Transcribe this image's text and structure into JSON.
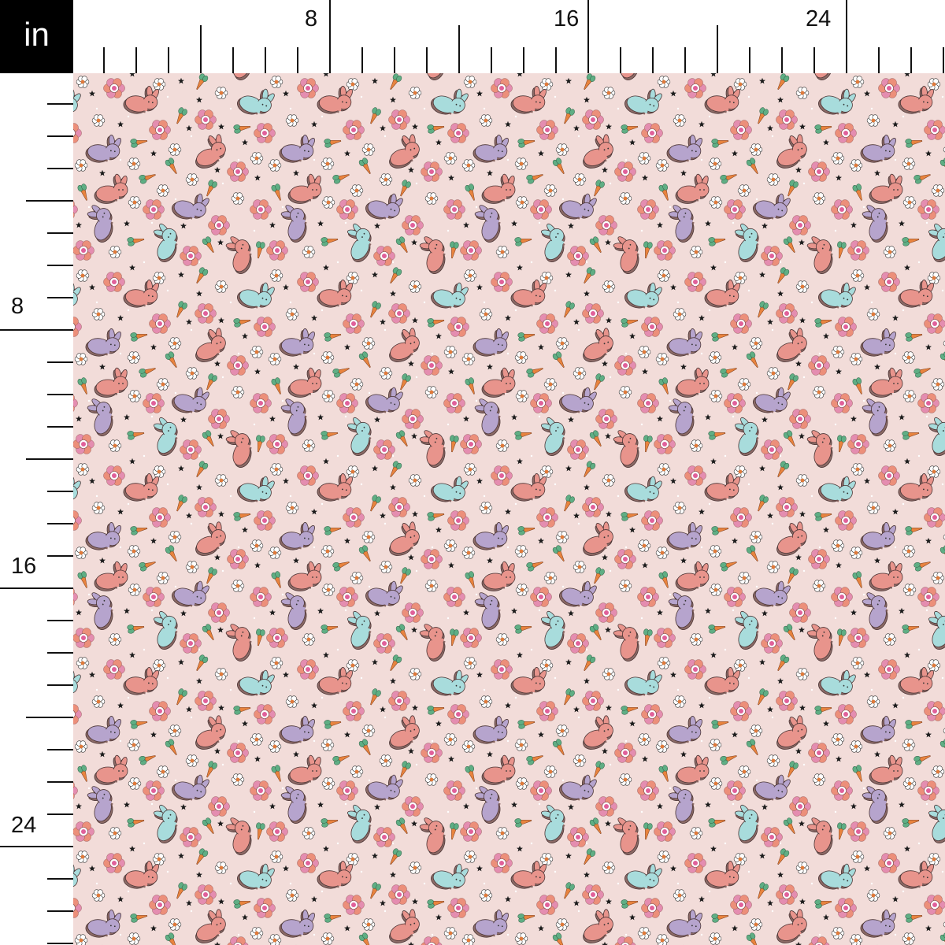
{
  "ruler": {
    "unit": "in",
    "top_labels": [
      "8",
      "16",
      "24"
    ],
    "left_labels": [
      "8",
      "16",
      "24"
    ]
  },
  "pattern": {
    "background": "#f2dcd9",
    "motifs": [
      "bunny",
      "flower",
      "daisy",
      "carrot",
      "star"
    ],
    "colors": {
      "bunny_pink": "#e8948c",
      "bunny_purple": "#b6a4cd",
      "bunny_blue": "#a8dcdc",
      "outline": "#4a3434",
      "flower_petal_a": "#ec8f7a",
      "flower_petal_b": "#e48db0",
      "daisy": "#ffffff",
      "daisy_center": "#e07a3a",
      "carrot": "#e8833e",
      "carrot_leaf": "#5fae84",
      "star": "#1c1c1c"
    }
  }
}
